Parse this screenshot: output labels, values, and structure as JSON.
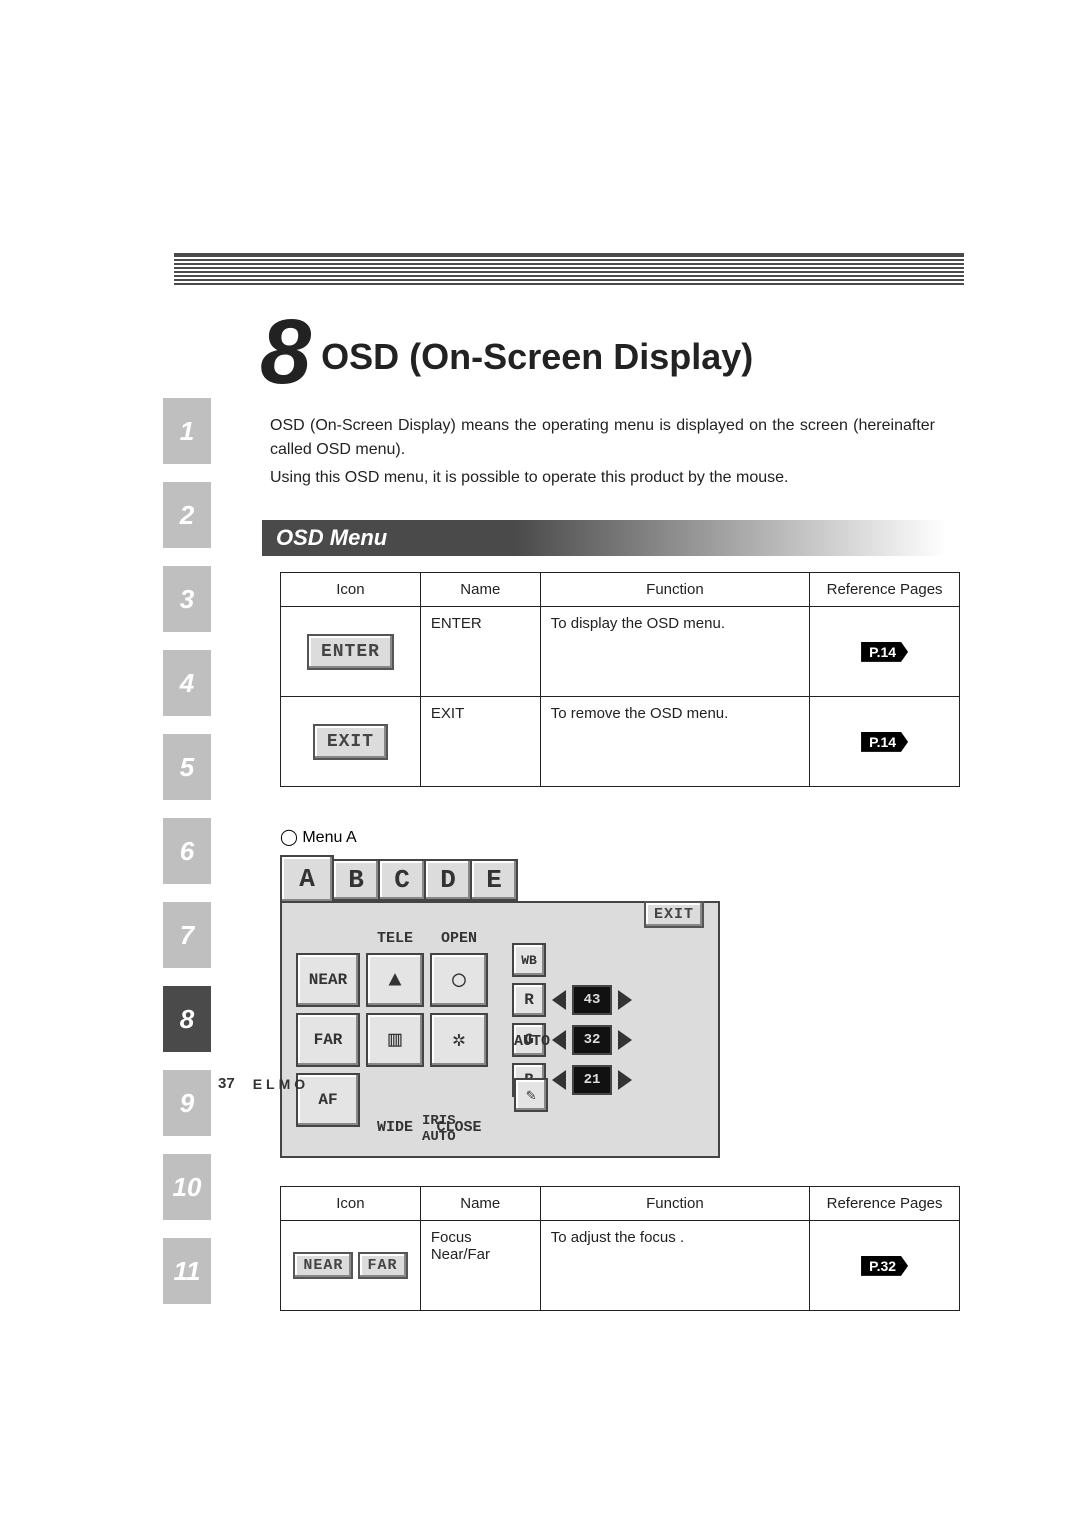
{
  "chapter": {
    "number": "8",
    "title": "OSD (On-Screen Display)"
  },
  "intro_lines": [
    "OSD (On-Screen Display) means the operating menu is displayed on the screen (hereinafter called OSD menu).",
    "Using this OSD menu, it is possible to operate this product by the mouse."
  ],
  "section_title": "OSD Menu",
  "table_headers": {
    "icon": "Icon",
    "name": "Name",
    "func": "Function",
    "ref": "Reference Pages"
  },
  "table1": {
    "rows": [
      {
        "icon_label": "ENTER",
        "name": "ENTER",
        "func": "To display the OSD menu.",
        "ref": "P.14"
      },
      {
        "icon_label": "EXIT",
        "name": "EXIT",
        "func": "To remove the OSD menu.",
        "ref": "P.14"
      }
    ]
  },
  "menu_a_label": "◯ Menu A",
  "menuA": {
    "tabs": [
      "A",
      "B",
      "C",
      "D",
      "E"
    ],
    "exit": "EXIT",
    "col_labels": [
      "TELE",
      "OPEN"
    ],
    "row_labels": [
      "NEAR",
      "FAR",
      "AF"
    ],
    "bottom_labels": [
      "WIDE",
      "CLOSE"
    ],
    "iris": "IRIS\nAUTO",
    "wb_label": "WB",
    "auto": "AUTO",
    "rgb": [
      {
        "ch": "R",
        "val": "43"
      },
      {
        "ch": "G",
        "val": "32"
      },
      {
        "ch": "B",
        "val": "21"
      }
    ]
  },
  "table2": {
    "rows": [
      {
        "icon_labels": [
          "NEAR",
          "FAR"
        ],
        "name": "Focus\nNear/Far",
        "func": "To adjust the focus .",
        "ref": "P.32"
      }
    ]
  },
  "footer": {
    "page": "37",
    "brand": "ELMO"
  },
  "side_tabs": [
    "1",
    "2",
    "3",
    "4",
    "5",
    "6",
    "7",
    "8",
    "9",
    "10",
    "11"
  ],
  "active_tab": "8"
}
